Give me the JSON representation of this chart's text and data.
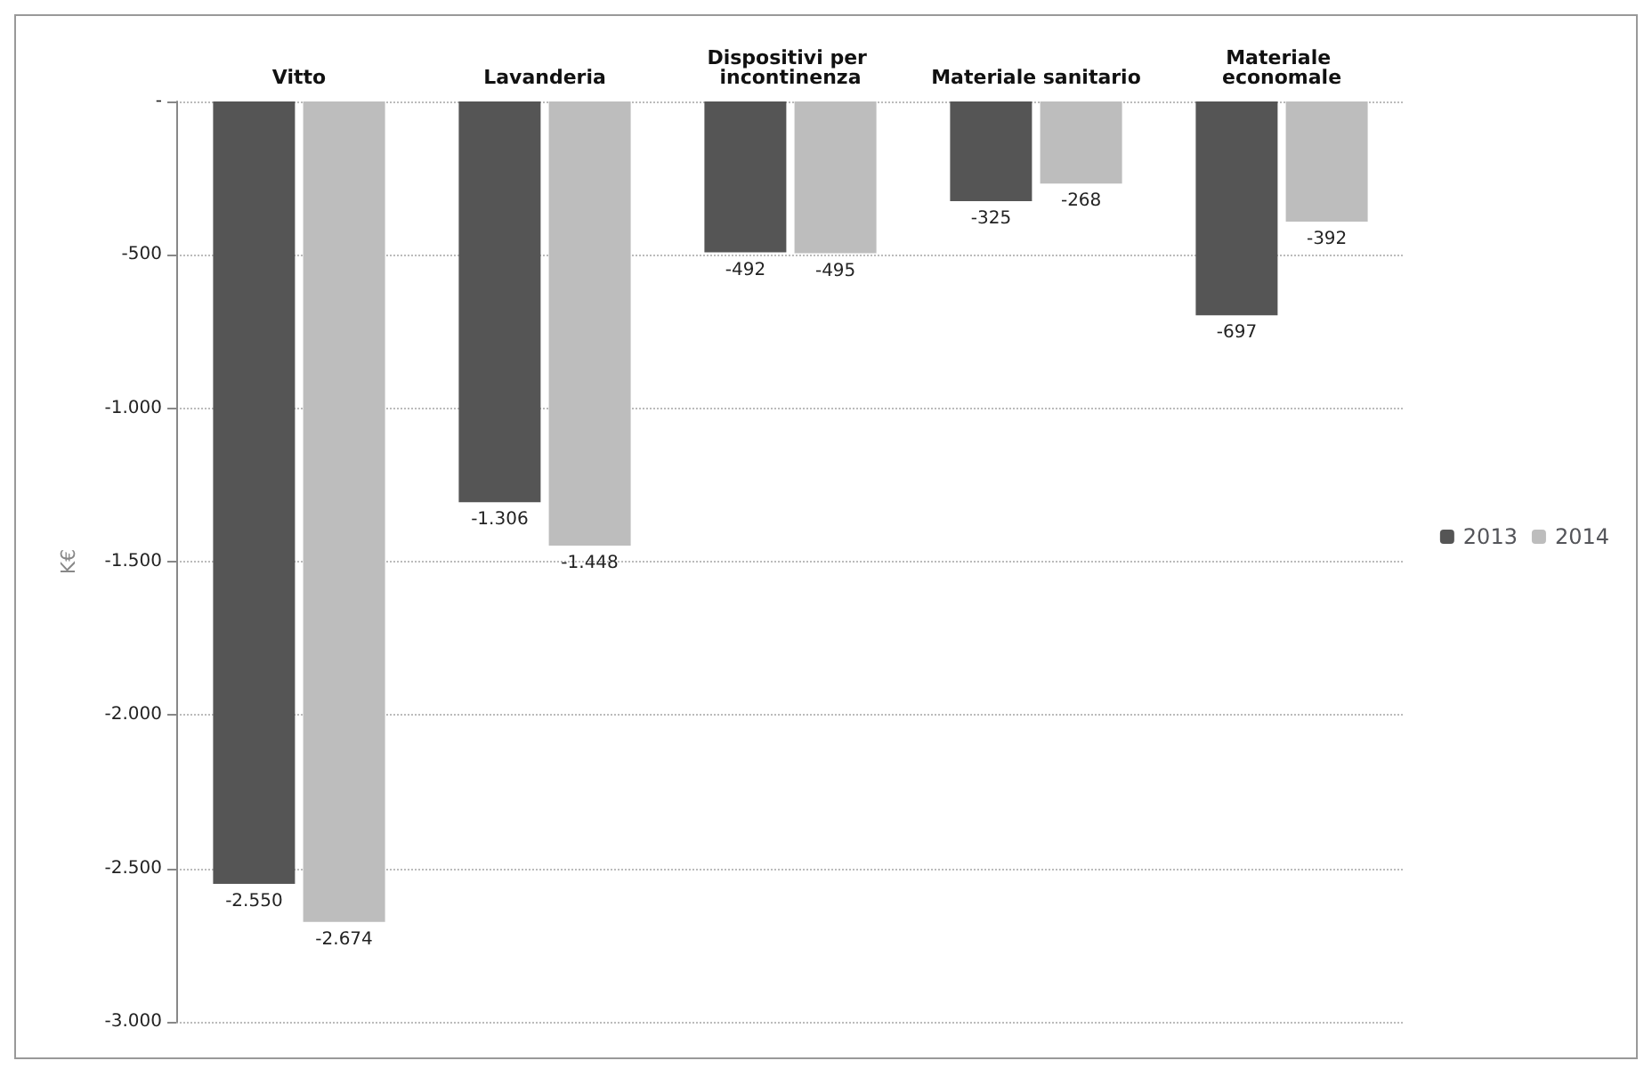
{
  "chart_data": {
    "type": "bar",
    "ylabel": "K€",
    "categories": [
      "Vitto",
      "Lavanderia",
      "Dispositivi per incontinenza",
      "Materiale sanitario",
      "Materiale economale"
    ],
    "series": [
      {
        "name": "2013",
        "color": "#555555",
        "values": [
          -2550,
          -1306,
          -492,
          -325,
          -697
        ],
        "value_labels": [
          "-2.550",
          "-1.306",
          "-492",
          "-325",
          "-697"
        ]
      },
      {
        "name": "2014",
        "color": "#bdbdbd",
        "values": [
          -2674,
          -1448,
          -495,
          -268,
          -392
        ],
        "value_labels": [
          "-2.674",
          "-1.448",
          "-495",
          "-268",
          "-392"
        ]
      }
    ],
    "ylim": [
      -3000,
      0
    ],
    "yticks": [
      {
        "value": 0,
        "label": "-"
      },
      {
        "value": -500,
        "label": "-500"
      },
      {
        "value": -1000,
        "label": "-1.000"
      },
      {
        "value": -1500,
        "label": "-1.500"
      },
      {
        "value": -2000,
        "label": "-2.000"
      },
      {
        "value": -2500,
        "label": "-2.500"
      },
      {
        "value": -3000,
        "label": "-3.000"
      }
    ],
    "grid": "y",
    "legend": "right"
  }
}
